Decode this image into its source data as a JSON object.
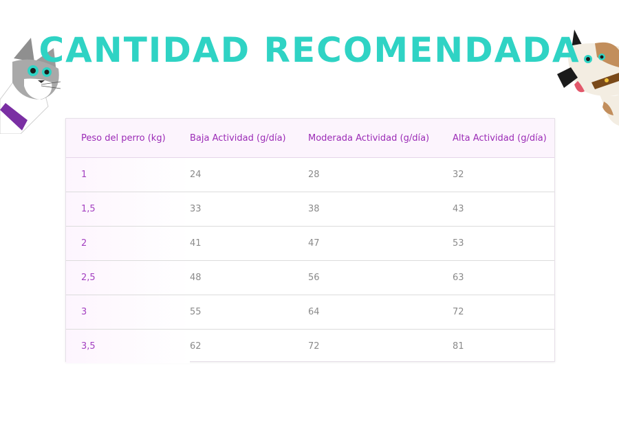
{
  "title": "CANTIDAD RECOMENDADA",
  "table": {
    "headers": [
      "Peso del perro (kg)",
      "Baja Actividad (g/día)",
      "Moderada Actividad (g/día)",
      "Alta Actividad (g/día)"
    ],
    "rows": [
      [
        "1",
        "24",
        "28",
        "32"
      ],
      [
        "1,5",
        "33",
        "38",
        "43"
      ],
      [
        "2",
        "41",
        "47",
        "53"
      ],
      [
        "2,5",
        "48",
        "56",
        "63"
      ],
      [
        "3",
        "55",
        "64",
        "72"
      ],
      [
        "3,5",
        "62",
        "72",
        "81"
      ]
    ]
  },
  "colors": {
    "title": "#2fd3c4",
    "header_text": "#9b2bb6",
    "first_column_text": "#a33fc0",
    "cell_text": "#8a8a8a"
  },
  "icons": [
    "cat-illustration",
    "dog-illustration"
  ]
}
